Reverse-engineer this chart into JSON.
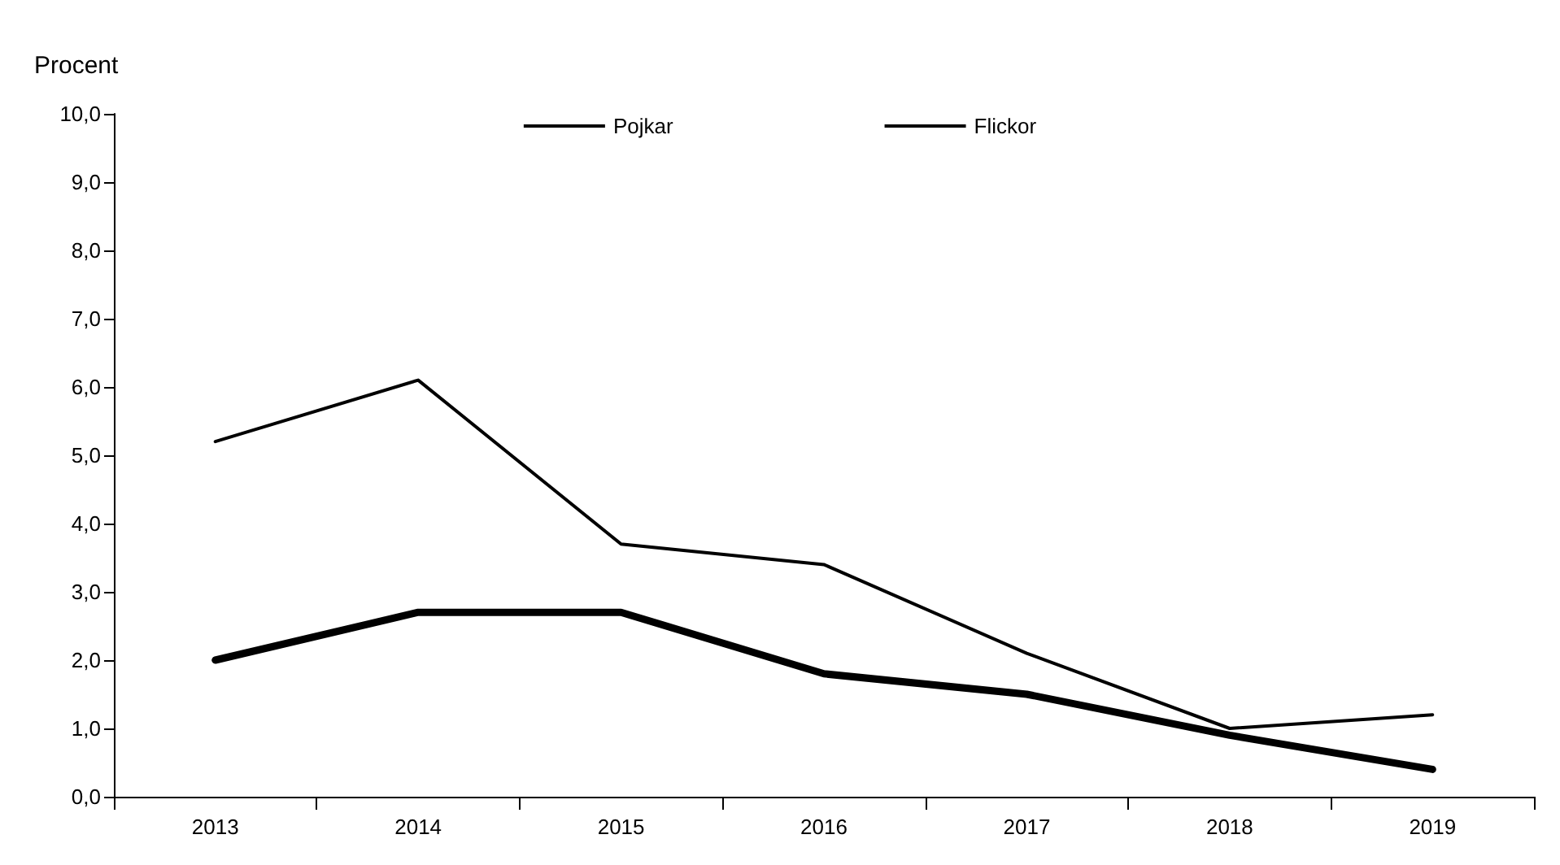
{
  "chart_data": {
    "type": "line",
    "ylabel": "Procent",
    "categories": [
      "2013",
      "2014",
      "2015",
      "2016",
      "2017",
      "2018",
      "2019"
    ],
    "series": [
      {
        "name": "Pojkar",
        "color": "#000000",
        "values": [
          5.2,
          6.1,
          3.7,
          3.4,
          2.1,
          1.0,
          1.2
        ]
      },
      {
        "name": "Flickor",
        "color": "#000000",
        "values": [
          2.0,
          2.7,
          2.7,
          1.8,
          1.5,
          0.9,
          0.4
        ]
      }
    ],
    "ylim": [
      0,
      10
    ],
    "yticks": [
      {
        "value": 0,
        "label": "0,0"
      },
      {
        "value": 1,
        "label": "1,0"
      },
      {
        "value": 2,
        "label": "2,0"
      },
      {
        "value": 3,
        "label": "3,0"
      },
      {
        "value": 4,
        "label": "4,0"
      },
      {
        "value": 5,
        "label": "5,0"
      },
      {
        "value": 6,
        "label": "6,0"
      },
      {
        "value": 7,
        "label": "7,0"
      },
      {
        "value": 8,
        "label": "8,0"
      },
      {
        "value": 9,
        "label": "9,0"
      },
      {
        "value": 10,
        "label": "10,0"
      }
    ],
    "grid": false,
    "legend": "top",
    "marker": "none",
    "line_style": "solid"
  }
}
